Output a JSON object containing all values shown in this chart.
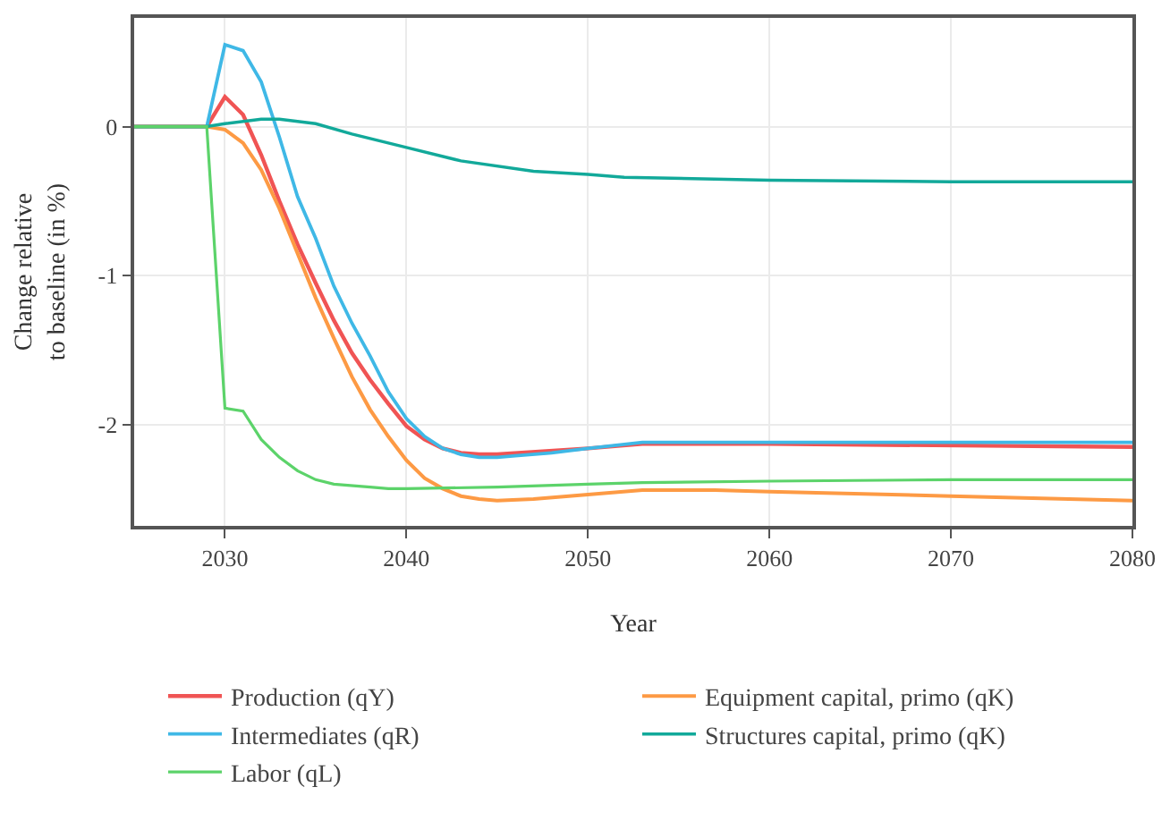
{
  "chart_data": {
    "type": "line",
    "xlabel": "Year",
    "ylabel": "Change relative\nto baseline (in %)",
    "xlim": [
      2025,
      2080
    ],
    "ylim": [
      -2.68,
      0.73
    ],
    "xticks": [
      2030,
      2040,
      2050,
      2060,
      2070,
      2080
    ],
    "yticks": [
      -2,
      -1,
      0
    ],
    "grid": true,
    "legend": "bottom",
    "line_style": "solid",
    "marker": "none",
    "series": [
      {
        "name": "Production (qY)",
        "color": "#f05454",
        "x": [
          2025,
          2029,
          2030,
          2031,
          2032,
          2033,
          2034,
          2035,
          2036,
          2037,
          2038,
          2039,
          2040,
          2041,
          2042,
          2043,
          2044,
          2045,
          2050,
          2053,
          2060,
          2080
        ],
        "values": [
          0,
          0,
          0.2,
          0.08,
          -0.19,
          -0.5,
          -0.79,
          -1.05,
          -1.3,
          -1.52,
          -1.7,
          -1.86,
          -2.01,
          -2.1,
          -2.16,
          -2.19,
          -2.2,
          -2.2,
          -2.16,
          -2.13,
          -2.13,
          -2.15
        ]
      },
      {
        "name": "Equipment capital, primo (qK)",
        "color": "#fd9a44",
        "x": [
          2025,
          2029,
          2030,
          2031,
          2032,
          2033,
          2034,
          2035,
          2036,
          2037,
          2038,
          2039,
          2040,
          2041,
          2042,
          2043,
          2044,
          2045,
          2047,
          2050,
          2053,
          2057,
          2060,
          2070,
          2080
        ],
        "values": [
          0,
          0,
          -0.02,
          -0.11,
          -0.29,
          -0.55,
          -0.85,
          -1.15,
          -1.42,
          -1.68,
          -1.9,
          -2.08,
          -2.24,
          -2.36,
          -2.43,
          -2.48,
          -2.5,
          -2.51,
          -2.5,
          -2.47,
          -2.44,
          -2.44,
          -2.45,
          -2.48,
          -2.51
        ]
      },
      {
        "name": "Intermediates (qR)",
        "color": "#3fb8e6",
        "x": [
          2025,
          2029,
          2030,
          2031,
          2032,
          2033,
          2034,
          2035,
          2036,
          2037,
          2038,
          2039,
          2040,
          2041,
          2042,
          2043,
          2044,
          2045,
          2046,
          2048,
          2050,
          2053,
          2080
        ],
        "values": [
          0,
          0,
          0.55,
          0.51,
          0.3,
          -0.07,
          -0.47,
          -0.75,
          -1.07,
          -1.32,
          -1.54,
          -1.78,
          -1.96,
          -2.08,
          -2.16,
          -2.2,
          -2.22,
          -2.22,
          -2.21,
          -2.19,
          -2.16,
          -2.12,
          -2.12
        ]
      },
      {
        "name": "Structures capital, primo (qK)",
        "color": "#12a99a",
        "x": [
          2025,
          2029,
          2030,
          2032,
          2033,
          2035,
          2037,
          2040,
          2043,
          2047,
          2050,
          2052,
          2060,
          2070,
          2080
        ],
        "values": [
          0,
          0,
          0.02,
          0.05,
          0.05,
          0.02,
          -0.05,
          -0.14,
          -0.23,
          -0.3,
          -0.32,
          -0.34,
          -0.36,
          -0.37,
          -0.37
        ]
      },
      {
        "name": "Labor (qL)",
        "color": "#5cd36a",
        "x": [
          2025,
          2029,
          2030,
          2031,
          2032,
          2033,
          2034,
          2035,
          2036,
          2038,
          2039,
          2040,
          2045,
          2050,
          2053,
          2060,
          2070,
          2080
        ],
        "values": [
          0,
          0,
          -1.89,
          -1.91,
          -2.1,
          -2.22,
          -2.31,
          -2.37,
          -2.4,
          -2.42,
          -2.43,
          -2.43,
          -2.42,
          -2.4,
          -2.39,
          -2.38,
          -2.37,
          -2.37
        ]
      }
    ]
  }
}
